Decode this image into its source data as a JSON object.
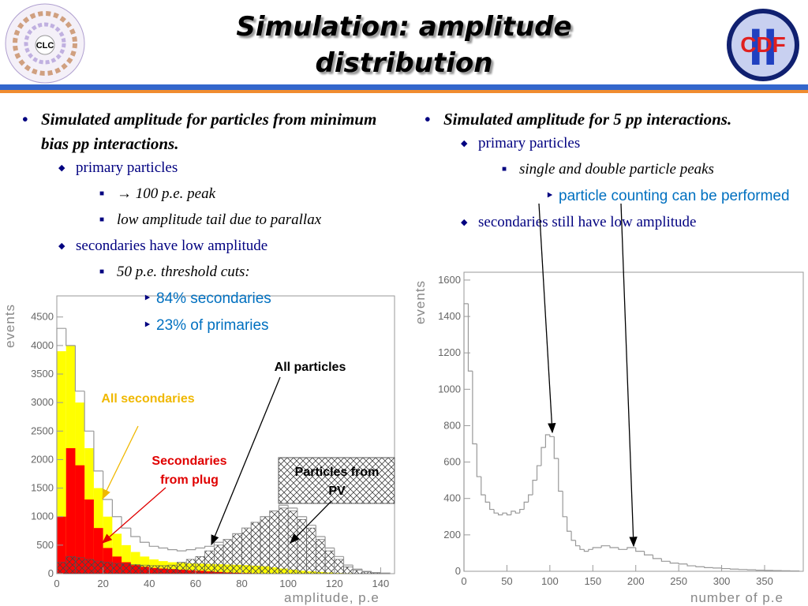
{
  "title_lines": [
    "Simulation: amplitude",
    "distribution"
  ],
  "logos": {
    "left": "CLC",
    "right": "CDF",
    "right_numeral": "II"
  },
  "left": {
    "text": "Simulated amplitude for particles from minimum bias pp interactions.",
    "items": [
      {
        "text": "primary particles",
        "items": [
          {
            "text": "→ 100 p.e. peak"
          },
          {
            "text": "low amplitude tail due to parallax"
          }
        ]
      },
      {
        "text": "secondaries have low amplitude",
        "items": [
          {
            "text": "50 p.e. threshold cuts:",
            "items": [
              {
                "text": "84% secondaries"
              },
              {
                "text": "23% of primaries"
              }
            ]
          }
        ]
      }
    ]
  },
  "right": {
    "text": "Simulated amplitude for 5 pp interactions.",
    "items": [
      {
        "text": "primary particles",
        "items": [
          {
            "text": "single and double particle peaks",
            "items": [
              {
                "text": "particle counting can be performed"
              }
            ]
          }
        ]
      },
      {
        "text": "secondaries still have low amplitude"
      }
    ]
  },
  "chart_data": [
    {
      "type": "histogram",
      "xlabel": "amplitude, p.e",
      "ylabel": "events",
      "xlim": [
        0,
        146
      ],
      "ylim": [
        0,
        4870
      ],
      "xticks": [
        0,
        20,
        40,
        60,
        80,
        100,
        120,
        140
      ],
      "yticks": [
        0,
        500,
        1000,
        1500,
        2000,
        2500,
        3000,
        3500,
        4000,
        4500
      ],
      "bins": [
        0,
        4,
        8,
        12,
        16,
        20,
        24,
        28,
        32,
        36,
        40,
        44,
        48,
        52,
        56,
        60,
        64,
        68,
        72,
        76,
        80,
        84,
        88,
        92,
        96,
        100,
        104,
        108,
        112,
        116,
        120,
        124,
        128,
        132,
        136,
        140,
        144
      ],
      "series": [
        {
          "name": "All particles",
          "color": "#999999",
          "outline": true,
          "values": [
            4300,
            4000,
            3200,
            2500,
            1800,
            1300,
            1000,
            800,
            650,
            550,
            480,
            450,
            420,
            400,
            420,
            450,
            480,
            550,
            600,
            700,
            800,
            900,
            1000,
            1100,
            1200,
            1150,
            1000,
            850,
            650,
            450,
            300,
            150,
            80,
            40,
            20,
            10
          ]
        },
        {
          "name": "All secondaries",
          "color": "#ffff00",
          "values": [
            3900,
            4000,
            3000,
            2200,
            1500,
            1000,
            700,
            500,
            380,
            300,
            250,
            220,
            200,
            190,
            180,
            175,
            170,
            165,
            160,
            155,
            150,
            140,
            130,
            110,
            90,
            70,
            50,
            40,
            30,
            20,
            10,
            5,
            0,
            0,
            0,
            0
          ]
        },
        {
          "name": "Secondaries from plug",
          "color": "#ff0000",
          "values": [
            1000,
            2200,
            1900,
            1300,
            800,
            450,
            300,
            200,
            150,
            120,
            100,
            90,
            80,
            70,
            60,
            50,
            40,
            30,
            20,
            15,
            10,
            5,
            0,
            0,
            0,
            0,
            0,
            0,
            0,
            0,
            0,
            0,
            0,
            0,
            0,
            0
          ]
        },
        {
          "name": "Particles from PV",
          "color": "#555555",
          "pattern": "hatch",
          "values": [
            200,
            300,
            280,
            250,
            220,
            200,
            180,
            170,
            160,
            150,
            140,
            140,
            150,
            200,
            250,
            300,
            400,
            500,
            600,
            700,
            800,
            900,
            1000,
            1100,
            1150,
            1100,
            950,
            800,
            600,
            400,
            250,
            120,
            60,
            30,
            15,
            5
          ]
        }
      ]
    },
    {
      "type": "histogram",
      "xlabel": "number of p.e",
      "ylabel": "events",
      "xlim": [
        0,
        395
      ],
      "ylim": [
        0,
        1643
      ],
      "xticks": [
        0,
        50,
        100,
        150,
        200,
        250,
        300,
        350
      ],
      "yticks": [
        0,
        200,
        400,
        600,
        800,
        1000,
        1200,
        1400,
        1600
      ],
      "bins": [
        0,
        5,
        10,
        15,
        20,
        25,
        30,
        35,
        40,
        45,
        50,
        55,
        60,
        65,
        70,
        75,
        80,
        85,
        90,
        95,
        100,
        105,
        110,
        115,
        120,
        125,
        130,
        135,
        140,
        145,
        150,
        160,
        170,
        180,
        190,
        200,
        210,
        220,
        230,
        240,
        250,
        260,
        270,
        280,
        290,
        300,
        310,
        320,
        330,
        340,
        350,
        360,
        370,
        380,
        390
      ],
      "series": [
        {
          "color": "#999999",
          "outline": true,
          "values": [
            1470,
            1100,
            700,
            520,
            420,
            380,
            340,
            320,
            310,
            320,
            310,
            330,
            320,
            340,
            380,
            420,
            500,
            580,
            680,
            750,
            740,
            620,
            440,
            300,
            220,
            170,
            140,
            120,
            110,
            120,
            130,
            140,
            130,
            120,
            130,
            110,
            90,
            70,
            55,
            45,
            40,
            30,
            25,
            20,
            18,
            15,
            12,
            10,
            8,
            6,
            5,
            4,
            3,
            2
          ]
        }
      ]
    }
  ]
}
